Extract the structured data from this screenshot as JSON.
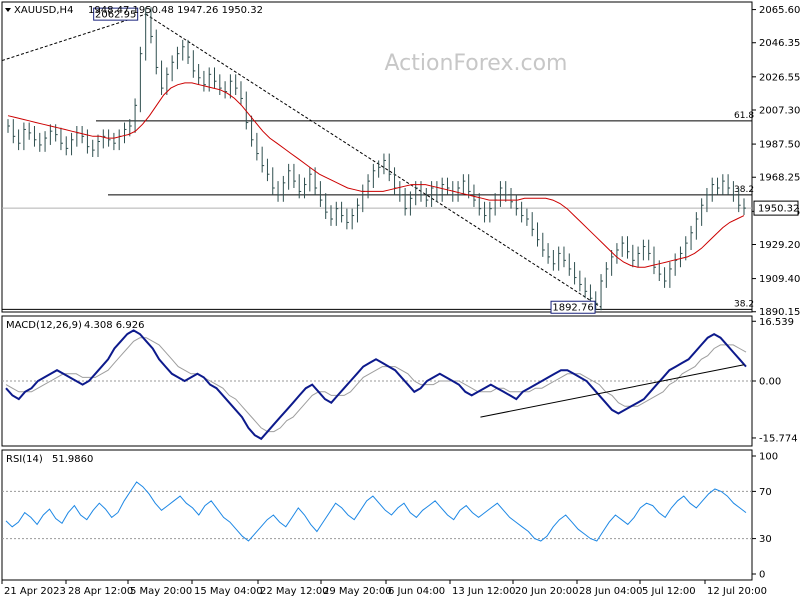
{
  "chart_data": [
    {
      "type": "line",
      "title": "XAUUSD,H4",
      "ohlc_header": "1948.47 1950.48 1947.26 1950.32",
      "watermark": "ActionForex.com",
      "ylim": [
        1890.0,
        2070.0
      ],
      "yticks": [
        "2065.60",
        "2046.35",
        "2026.55",
        "2007.30",
        "1987.50",
        "1968.25",
        "1948.45",
        "1929.20",
        "1909.40",
        "1890.15"
      ],
      "last_price": "1950.32",
      "annotations": {
        "high_label": "2062.95",
        "low_label": "1892.76",
        "fib_upper_label": "61.8",
        "fib_mid_label": "38.2",
        "fib_low_label": "38.2"
      },
      "levels": {
        "fib_upper": 2001.0,
        "fib_mid": 1958.0,
        "fib_low": 1891.5,
        "last": 1950.32
      },
      "trendline": {
        "start": [
          0,
          2036
        ],
        "end": [
          148,
          1892.76
        ]
      },
      "xticks": [
        "21 Apr 2023",
        "28 Apr 12:00",
        "5 May 20:00",
        "15 May 04:00",
        "22 May 12:00",
        "29 May 20:00",
        "6 Jun 04:00",
        "13 Jun 12:00",
        "20 Jun 20:00",
        "28 Jun 04:00",
        "5 Jul 12:00",
        "12 Jul 20:00"
      ],
      "series": [
        {
          "values": [
            1998,
            1992,
            1988,
            1996,
            1994,
            1990,
            1987,
            1991,
            1995,
            1993,
            1988,
            1985,
            1990,
            1994,
            1992,
            1986,
            1984,
            1989,
            1992,
            1990,
            1988,
            1992,
            1996,
            1998,
            2010,
            2040,
            2062.95,
            2050,
            2032,
            2020,
            2028,
            2035,
            2040,
            2044,
            2038,
            2030,
            2026,
            2022,
            2028,
            2024,
            2020,
            2018,
            2024,
            2020,
            2014,
            2000,
            1990,
            1982,
            1975,
            1970,
            1962,
            1958,
            1965,
            1972,
            1966,
            1960,
            1964,
            1970,
            1962,
            1955,
            1948,
            1944,
            1950,
            1946,
            1942,
            1946,
            1952,
            1960,
            1966,
            1972,
            1974,
            1978,
            1970,
            1962,
            1958,
            1950,
            1956,
            1962,
            1958,
            1955,
            1962,
            1958,
            1964,
            1962,
            1958,
            1962,
            1966,
            1960,
            1955,
            1950,
            1946,
            1950,
            1955,
            1962,
            1958,
            1954,
            1950,
            1946,
            1944,
            1938,
            1932,
            1926,
            1922,
            1918,
            1924,
            1920,
            1915,
            1910,
            1906,
            1902,
            1898,
            1895,
            1908,
            1915,
            1922,
            1926,
            1930,
            1925,
            1920,
            1924,
            1928,
            1924,
            1916,
            1912,
            1908,
            1915,
            1920,
            1924,
            1930,
            1936,
            1944,
            1952,
            1958,
            1964,
            1962,
            1966,
            1962,
            1958,
            1952,
            1950.32
          ]
        },
        {
          "values": [
            2004,
            2003,
            2002,
            2001,
            2000,
            1999,
            1998,
            1997,
            1996,
            1995,
            1994,
            1993,
            1992,
            1992,
            1991,
            1991,
            1992,
            1993,
            1995,
            1999,
            2004,
            2010,
            2016,
            2020,
            2022,
            2023,
            2023,
            2022,
            2021,
            2020,
            2019,
            2017,
            2014,
            2010,
            2005,
            2000,
            1995,
            1991,
            1988,
            1985,
            1982,
            1979,
            1976,
            1973,
            1970,
            1968,
            1966,
            1964,
            1962,
            1961,
            1960,
            1960,
            1960,
            1960,
            1961,
            1962,
            1963,
            1964,
            1964,
            1964,
            1963,
            1962,
            1961,
            1960,
            1959,
            1958,
            1957,
            1956,
            1955,
            1955,
            1955,
            1955,
            1955,
            1956,
            1956,
            1956,
            1956,
            1955,
            1953,
            1950,
            1946,
            1942,
            1938,
            1934,
            1930,
            1926,
            1922,
            1919,
            1917,
            1916,
            1916,
            1917,
            1918,
            1919,
            1920,
            1921,
            1922,
            1924,
            1927,
            1931,
            1935,
            1939,
            1942,
            1944,
            1946
          ]
        }
      ]
    },
    {
      "type": "line",
      "title": "MACD(12,26,9)",
      "values_header": "4.308 6.926",
      "ylim": [
        -18.0,
        18.0
      ],
      "yticks": [
        "16.539",
        "0.00",
        "-15.774"
      ],
      "series": [
        {
          "values": [
            -2,
            -4,
            -5,
            -3,
            -2,
            0,
            1,
            2,
            3,
            2,
            1,
            0,
            -1,
            0,
            2,
            4,
            6,
            9,
            11,
            13,
            14,
            13,
            11,
            9,
            6,
            4,
            2,
            1,
            0,
            1,
            2,
            1,
            -1,
            -2,
            -4,
            -6,
            -8,
            -10,
            -13,
            -15,
            -16,
            -14,
            -12,
            -10,
            -8,
            -6,
            -4,
            -2,
            -1,
            -3,
            -5,
            -6,
            -4,
            -2,
            0,
            2,
            4,
            5,
            6,
            5,
            4,
            3,
            1,
            -1,
            -3,
            -2,
            0,
            1,
            2,
            1,
            0,
            -1,
            -3,
            -4,
            -3,
            -2,
            -1,
            -2,
            -3,
            -4,
            -5,
            -3,
            -2,
            -1,
            0,
            1,
            2,
            3,
            3,
            2,
            1,
            0,
            -2,
            -4,
            -6,
            -8,
            -9,
            -8,
            -7,
            -6,
            -5,
            -3,
            -1,
            1,
            3,
            4,
            5,
            6,
            8,
            10,
            12,
            13,
            12,
            10,
            8,
            6,
            4
          ]
        },
        {
          "values": [
            -1,
            -2,
            -3,
            -3,
            -3,
            -2,
            -1,
            0,
            1,
            2,
            2,
            2,
            1,
            1,
            1,
            2,
            3,
            5,
            7,
            9,
            11,
            12,
            12,
            11,
            10,
            8,
            6,
            4,
            3,
            2,
            2,
            1,
            0,
            -1,
            -2,
            -4,
            -5,
            -7,
            -9,
            -11,
            -13,
            -14,
            -14,
            -13,
            -11,
            -10,
            -8,
            -6,
            -4,
            -3,
            -3,
            -4,
            -4,
            -4,
            -3,
            -1,
            1,
            2,
            3,
            4,
            4,
            4,
            3,
            2,
            0,
            -1,
            -1,
            -1,
            0,
            0,
            0,
            0,
            -1,
            -2,
            -3,
            -3,
            -3,
            -2,
            -2,
            -3,
            -3,
            -3,
            -3,
            -2,
            -2,
            -1,
            0,
            1,
            2,
            2,
            2,
            1,
            0,
            -1,
            -3,
            -4,
            -6,
            -7,
            -7,
            -7,
            -6,
            -5,
            -4,
            -3,
            -1,
            0,
            2,
            3,
            4,
            6,
            7,
            9,
            10,
            10,
            10,
            9,
            8
          ]
        }
      ],
      "trendline": {
        "start": [
          95,
          -10
        ],
        "end": [
          148,
          4.5
        ]
      }
    },
    {
      "type": "line",
      "title": "RSI(14)",
      "values_header": "51.9860",
      "ylim": [
        0,
        100
      ],
      "yticks": [
        "100",
        "70",
        "30",
        "0"
      ],
      "levels": [
        70,
        30
      ],
      "series": [
        {
          "values": [
            45,
            40,
            44,
            52,
            48,
            42,
            50,
            55,
            47,
            43,
            52,
            58,
            50,
            46,
            54,
            60,
            55,
            48,
            52,
            62,
            70,
            78,
            74,
            68,
            60,
            54,
            58,
            62,
            66,
            60,
            56,
            50,
            58,
            62,
            55,
            48,
            44,
            38,
            32,
            28,
            34,
            40,
            46,
            50,
            44,
            40,
            48,
            56,
            50,
            42,
            36,
            44,
            52,
            60,
            56,
            50,
            46,
            54,
            62,
            66,
            60,
            54,
            50,
            56,
            60,
            52,
            48,
            54,
            58,
            62,
            56,
            50,
            46,
            54,
            58,
            52,
            48,
            52,
            56,
            60,
            54,
            48,
            44,
            40,
            36,
            30,
            28,
            32,
            40,
            46,
            50,
            44,
            38,
            34,
            30,
            28,
            36,
            44,
            50,
            46,
            42,
            48,
            56,
            60,
            58,
            52,
            48,
            56,
            62,
            66,
            60,
            56,
            62,
            68,
            72,
            70,
            66,
            60,
            56,
            52
          ]
        }
      ]
    }
  ]
}
